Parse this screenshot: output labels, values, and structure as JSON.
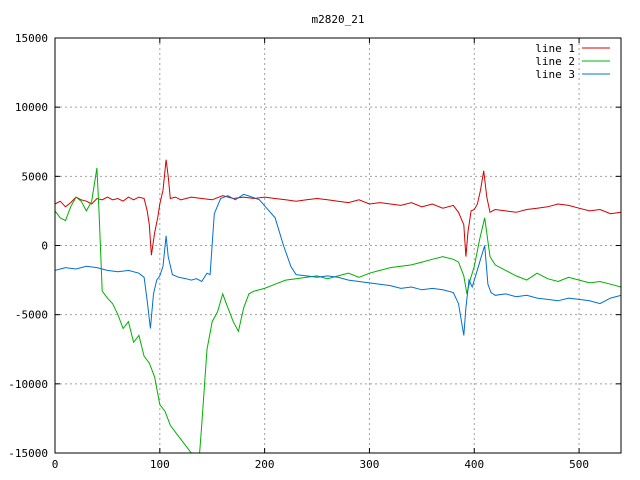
{
  "chart_data": {
    "type": "line",
    "title": "m2820_21",
    "xlabel": "",
    "ylabel": "",
    "xlim": [
      0,
      540
    ],
    "ylim": [
      -15000,
      15000
    ],
    "xticks": [
      0,
      100,
      200,
      300,
      400,
      500
    ],
    "yticks": [
      -15000,
      -10000,
      -5000,
      0,
      5000,
      10000,
      15000
    ],
    "grid": true,
    "legend_position": "top-right",
    "series": [
      {
        "name": "line 1",
        "color": "#d40000",
        "x": [
          0,
          5,
          10,
          15,
          20,
          25,
          30,
          35,
          40,
          45,
          50,
          55,
          60,
          65,
          70,
          75,
          80,
          85,
          88,
          90,
          92,
          95,
          98,
          100,
          103,
          106,
          108,
          110,
          115,
          120,
          130,
          140,
          150,
          160,
          170,
          180,
          190,
          200,
          210,
          220,
          230,
          240,
          250,
          260,
          270,
          280,
          290,
          300,
          310,
          320,
          330,
          340,
          350,
          360,
          370,
          380,
          385,
          390,
          392,
          394,
          397,
          400,
          403,
          406,
          409,
          412,
          415,
          420,
          430,
          440,
          450,
          460,
          470,
          480,
          490,
          500,
          510,
          520,
          530,
          540
        ],
        "y": [
          3000,
          3200,
          2800,
          3100,
          3500,
          3300,
          3200,
          3000,
          3400,
          3300,
          3500,
          3300,
          3400,
          3200,
          3500,
          3300,
          3500,
          3400,
          2500,
          1500,
          -700,
          900,
          2000,
          3000,
          4000,
          6200,
          5000,
          3400,
          3500,
          3300,
          3500,
          3400,
          3300,
          3600,
          3400,
          3500,
          3400,
          3500,
          3400,
          3300,
          3200,
          3300,
          3400,
          3300,
          3200,
          3100,
          3300,
          3000,
          3100,
          3000,
          2900,
          3100,
          2800,
          3000,
          2700,
          2900,
          2400,
          1500,
          -800,
          1000,
          2500,
          2600,
          3000,
          4000,
          5400,
          3500,
          2400,
          2600,
          2500,
          2400,
          2600,
          2700,
          2800,
          3000,
          2900,
          2700,
          2500,
          2600,
          2300,
          2400
        ]
      },
      {
        "name": "line 2",
        "color": "#00b000",
        "x": [
          0,
          5,
          10,
          15,
          20,
          25,
          30,
          35,
          40,
          42,
          45,
          50,
          55,
          60,
          65,
          70,
          75,
          80,
          85,
          90,
          95,
          100,
          105,
          110,
          115,
          120,
          125,
          130,
          135,
          138,
          140,
          145,
          150,
          155,
          160,
          165,
          170,
          175,
          180,
          185,
          190,
          200,
          210,
          220,
          230,
          240,
          250,
          260,
          270,
          280,
          290,
          300,
          310,
          320,
          330,
          340,
          350,
          360,
          370,
          380,
          385,
          390,
          393,
          396,
          400,
          405,
          410,
          415,
          420,
          430,
          440,
          450,
          460,
          470,
          480,
          490,
          500,
          510,
          520,
          530,
          540
        ],
        "y": [
          2500,
          2000,
          1800,
          2800,
          3500,
          3200,
          2500,
          3200,
          5600,
          2500,
          -3300,
          -3800,
          -4200,
          -5000,
          -6000,
          -5500,
          -7000,
          -6500,
          -8000,
          -8500,
          -9500,
          -11500,
          -12000,
          -13000,
          -13500,
          -14000,
          -14500,
          -15000,
          -15000,
          -15000,
          -13000,
          -7500,
          -5500,
          -4800,
          -3500,
          -4500,
          -5500,
          -6200,
          -4500,
          -3500,
          -3300,
          -3100,
          -2800,
          -2500,
          -2400,
          -2300,
          -2200,
          -2400,
          -2200,
          -2000,
          -2300,
          -2000,
          -1800,
          -1600,
          -1500,
          -1400,
          -1200,
          -1000,
          -800,
          -1000,
          -1200,
          -2200,
          -3500,
          -2500,
          -1500,
          400,
          2000,
          -800,
          -1400,
          -1800,
          -2200,
          -2500,
          -2000,
          -2400,
          -2600,
          -2300,
          -2500,
          -2700,
          -2600,
          -2800,
          -3000
        ]
      },
      {
        "name": "line 3",
        "color": "#0070d0",
        "x": [
          0,
          10,
          20,
          30,
          40,
          50,
          60,
          70,
          80,
          85,
          88,
          91,
          94,
          97,
          100,
          103,
          106,
          108,
          112,
          118,
          125,
          130,
          135,
          140,
          145,
          148,
          152,
          158,
          165,
          172,
          180,
          188,
          195,
          202,
          210,
          218,
          225,
          230,
          240,
          250,
          260,
          270,
          280,
          290,
          300,
          310,
          320,
          330,
          340,
          350,
          360,
          370,
          380,
          385,
          390,
          392,
          395,
          398,
          402,
          406,
          410,
          413,
          416,
          420,
          430,
          440,
          450,
          460,
          470,
          480,
          490,
          500,
          510,
          520,
          530,
          540
        ],
        "y": [
          -1800,
          -1600,
          -1700,
          -1500,
          -1600,
          -1800,
          -1900,
          -1800,
          -2000,
          -2300,
          -4000,
          -6000,
          -3500,
          -2500,
          -2200,
          -1500,
          700,
          -800,
          -2100,
          -2300,
          -2400,
          -2500,
          -2400,
          -2600,
          -2000,
          -2100,
          2300,
          3400,
          3600,
          3300,
          3700,
          3500,
          3300,
          2700,
          2000,
          0,
          -1500,
          -2100,
          -2200,
          -2300,
          -2200,
          -2300,
          -2500,
          -2600,
          -2700,
          -2800,
          -2900,
          -3100,
          -3000,
          -3200,
          -3100,
          -3200,
          -3400,
          -4200,
          -6500,
          -4500,
          -2500,
          -3000,
          -2000,
          -1000,
          0,
          -2800,
          -3400,
          -3600,
          -3500,
          -3700,
          -3600,
          -3800,
          -3900,
          -4000,
          -3800,
          -3900,
          -4000,
          -4200,
          -3800,
          -3600
        ]
      }
    ]
  }
}
